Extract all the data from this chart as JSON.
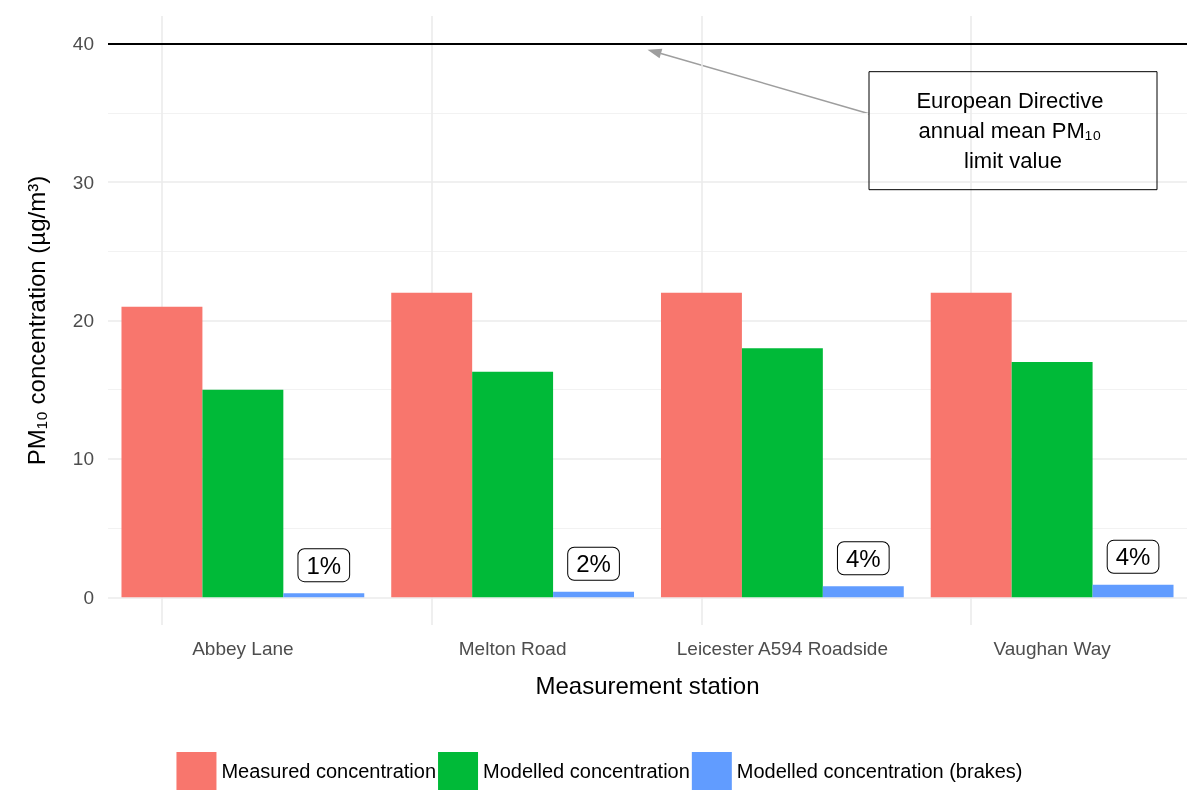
{
  "chart_data": {
    "type": "bar",
    "xlabel": "Measurement station",
    "ylabel": "PM₁₀ concentration (µg/m³)",
    "categories": [
      "Abbey Lane",
      "Melton Road",
      "Leicester A594 Roadside",
      "Vaughan Way"
    ],
    "series": [
      {
        "name": "Measured concentration",
        "color": "#f8766d",
        "values": [
          21,
          22,
          22,
          22
        ]
      },
      {
        "name": "Modelled concentration",
        "color": "#00ba38",
        "values": [
          15,
          16.3,
          18,
          17
        ]
      },
      {
        "name": "Modelled concentration (brakes)",
        "color": "#619cff",
        "values": [
          0.3,
          0.4,
          0.8,
          0.9
        ]
      }
    ],
    "ylim": [
      -2,
      42
    ],
    "yticks": [
      0,
      10,
      20,
      30,
      40
    ],
    "grid": true,
    "legend": "bottom",
    "ref_lines": [
      {
        "axis": "y",
        "value": 40,
        "label": "European Directive annual mean PM₁₀ limit value",
        "color": "#000000"
      }
    ],
    "annotations": [
      "1%",
      "2%",
      "4%",
      "4%"
    ]
  }
}
